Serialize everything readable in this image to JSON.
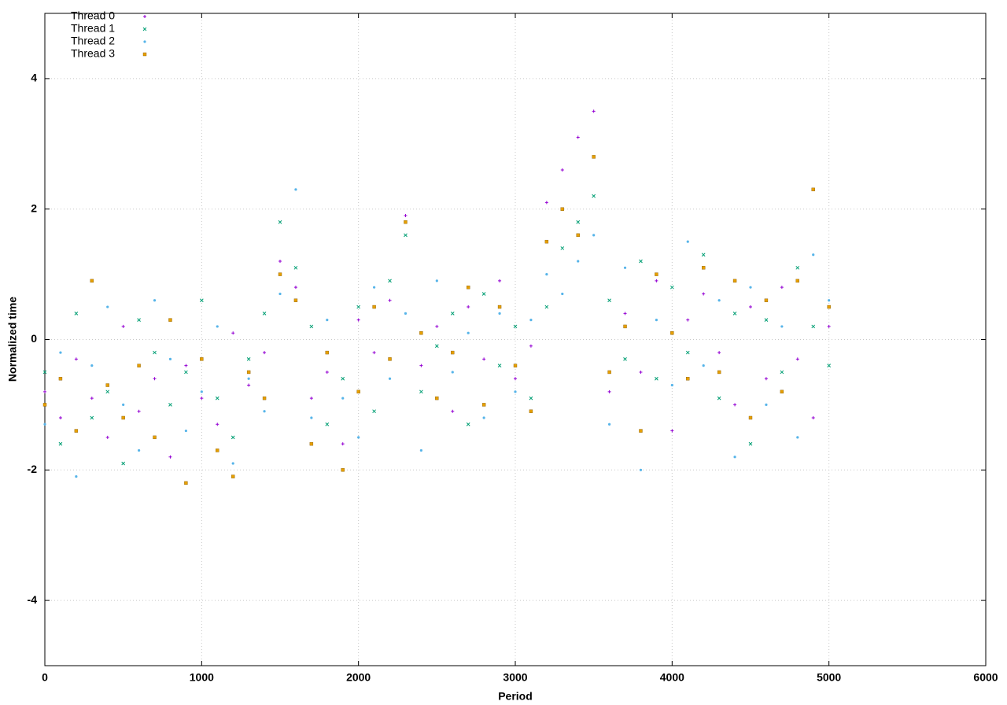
{
  "chart_data": {
    "type": "scatter",
    "xlabel": "Period",
    "ylabel": "Normalized time",
    "xlim": [
      0,
      6000
    ],
    "xticks": [
      0,
      1000,
      2000,
      3000,
      4000,
      5000,
      6000
    ],
    "ylim": [
      -5,
      5
    ],
    "yticks": [
      -4,
      -2,
      0,
      2,
      4
    ],
    "grid": true,
    "legend": "top-left",
    "x": [
      0,
      100,
      200,
      300,
      400,
      500,
      600,
      700,
      800,
      900,
      1000,
      1100,
      1200,
      1300,
      1400,
      1500,
      1600,
      1700,
      1800,
      1900,
      2000,
      2100,
      2200,
      2300,
      2400,
      2500,
      2600,
      2700,
      2800,
      2900,
      3000,
      3100,
      3200,
      3300,
      3400,
      3500,
      3600,
      3700,
      3800,
      3900,
      4000,
      4100,
      4200,
      4300,
      4400,
      4500,
      4600,
      4700,
      4800,
      4900,
      5000
    ],
    "series": [
      {
        "name": "Thread 0",
        "color": "#9400d3",
        "marker": "plus",
        "values": [
          -0.8,
          -1.2,
          -0.3,
          -0.9,
          -1.5,
          0.2,
          -1.1,
          -0.6,
          -1.8,
          -0.4,
          -0.9,
          -1.3,
          0.1,
          -0.7,
          -0.2,
          1.2,
          0.8,
          -0.9,
          -0.5,
          -1.6,
          0.3,
          -0.2,
          0.6,
          1.9,
          -0.4,
          0.2,
          -1.1,
          0.5,
          -0.3,
          0.9,
          -0.6,
          -0.1,
          2.1,
          2.6,
          3.1,
          3.5,
          -0.8,
          0.4,
          -0.5,
          0.9,
          -1.4,
          0.3,
          0.7,
          -0.2,
          -1.0,
          0.5,
          -0.6,
          0.8,
          -0.3,
          -1.2,
          0.2
        ]
      },
      {
        "name": "Thread 1",
        "color": "#009e73",
        "marker": "cross",
        "values": [
          -0.5,
          -1.6,
          0.4,
          -1.2,
          -0.8,
          -1.9,
          0.3,
          -0.2,
          -1.0,
          -0.5,
          0.6,
          -0.9,
          -1.5,
          -0.3,
          0.4,
          1.8,
          1.1,
          0.2,
          -1.3,
          -0.6,
          0.5,
          -1.1,
          0.9,
          1.6,
          -0.8,
          -0.1,
          0.4,
          -1.3,
          0.7,
          -0.4,
          0.2,
          -0.9,
          0.5,
          1.4,
          1.8,
          2.2,
          0.6,
          -0.3,
          1.2,
          -0.6,
          0.8,
          -0.2,
          1.3,
          -0.9,
          0.4,
          -1.6,
          0.3,
          -0.5,
          1.1,
          0.2,
          -0.4
        ]
      },
      {
        "name": "Thread 2",
        "color": "#56b4e9",
        "marker": "dot",
        "values": [
          -1.3,
          -0.2,
          -2.1,
          -0.4,
          0.5,
          -1.0,
          -1.7,
          0.6,
          -0.3,
          -1.4,
          -0.8,
          0.2,
          -1.9,
          -0.6,
          -1.1,
          0.7,
          2.3,
          -1.2,
          0.3,
          -0.9,
          -1.5,
          0.8,
          -0.6,
          0.4,
          -1.7,
          0.9,
          -0.5,
          0.1,
          -1.2,
          0.4,
          -0.8,
          0.3,
          1.0,
          0.7,
          1.2,
          1.6,
          -1.3,
          1.1,
          -2.0,
          0.3,
          -0.7,
          1.5,
          -0.4,
          0.6,
          -1.8,
          0.8,
          -1.0,
          0.2,
          -1.5,
          1.3,
          0.6
        ]
      },
      {
        "name": "Thread 3",
        "color": "#e69f00",
        "marker": "square",
        "values": [
          -1.0,
          -0.6,
          -1.4,
          0.9,
          -0.7,
          -1.2,
          -0.4,
          -1.5,
          0.3,
          -2.2,
          -0.3,
          -1.7,
          -2.1,
          -0.5,
          -0.9,
          1.0,
          0.6,
          -1.6,
          -0.2,
          -2.0,
          -0.8,
          0.5,
          -0.3,
          1.8,
          0.1,
          -0.9,
          -0.2,
          0.8,
          -1.0,
          0.5,
          -0.4,
          -1.1,
          1.5,
          2.0,
          1.6,
          2.8,
          -0.5,
          0.2,
          -1.4,
          1.0,
          0.1,
          -0.6,
          1.1,
          -0.5,
          0.9,
          -1.2,
          0.6,
          -0.8,
          0.9,
          2.3,
          0.5
        ]
      }
    ]
  }
}
